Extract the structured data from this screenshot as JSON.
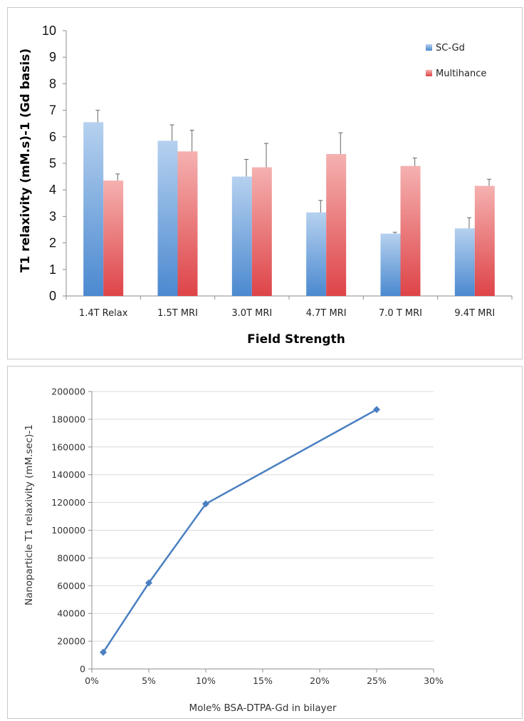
{
  "chart_data": [
    {
      "type": "bar",
      "title": "",
      "xlabel": "Field Strength",
      "ylabel": "T1 relaxivity (mM.s)-1 (Gd basis)",
      "ylim": [
        0,
        10
      ],
      "yticks": [
        0,
        1,
        2,
        3,
        4,
        5,
        6,
        7,
        8,
        9,
        10
      ],
      "grid": false,
      "legend_position": "top-right",
      "categories": [
        "1.4T Relax",
        "1.5T MRI",
        "3.0T MRI",
        "4.7T MRI",
        "7.0 T MRI",
        "9.4T MRI"
      ],
      "series": [
        {
          "name": "SC-Gd",
          "values": [
            6.55,
            5.85,
            4.5,
            3.15,
            2.35,
            2.55
          ],
          "errors": [
            0.45,
            0.6,
            0.65,
            0.45,
            0.05,
            0.4
          ],
          "color": "#5b9bd5"
        },
        {
          "name": "Multihance",
          "values": [
            4.35,
            5.45,
            4.85,
            5.35,
            4.9,
            4.15
          ],
          "errors": [
            0.25,
            0.8,
            0.9,
            0.8,
            0.3,
            0.25
          ],
          "color": "#e8585c"
        }
      ]
    },
    {
      "type": "line",
      "title": "",
      "xlabel": "Mole% BSA-DTPA-Gd in bilayer",
      "ylabel": "Nanoparticle T1 relaxivity (mM.sec)-1",
      "xlim": [
        0,
        30
      ],
      "ylim": [
        0,
        200000
      ],
      "xticks": [
        0,
        5,
        10,
        15,
        20,
        25,
        30
      ],
      "xtick_labels": [
        "0%",
        "5%",
        "10%",
        "15%",
        "20%",
        "25%",
        "30%"
      ],
      "yticks": [
        0,
        20000,
        40000,
        60000,
        80000,
        100000,
        120000,
        140000,
        160000,
        180000,
        200000
      ],
      "grid": true,
      "series": [
        {
          "x": [
            1,
            5,
            10,
            25
          ],
          "y": [
            12000,
            62000,
            119000,
            187000
          ],
          "color": "#4a7fc1",
          "marker": "diamond"
        }
      ]
    }
  ]
}
